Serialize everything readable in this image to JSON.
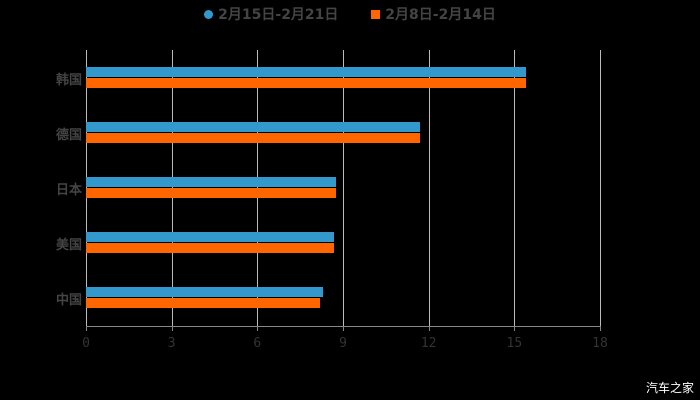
{
  "chart_data": {
    "type": "bar",
    "orientation": "horizontal",
    "title": "",
    "categories": [
      "韩国",
      "德国",
      "日本",
      "美国",
      "中国"
    ],
    "series": [
      {
        "name": "2月15日-2月21日",
        "color": "#3399cc",
        "values": [
          15.4,
          11.7,
          8.75,
          8.7,
          8.3
        ]
      },
      {
        "name": "2月8日-2月14日",
        "color": "#ff6600",
        "values": [
          15.4,
          11.7,
          8.75,
          8.7,
          8.2
        ]
      }
    ],
    "xlabel": "",
    "ylabel": "",
    "xlim": [
      0,
      18
    ],
    "xticks": [
      "0",
      "3",
      "6",
      "9",
      "12",
      "15",
      "18"
    ],
    "grid": true,
    "legend_position": "top"
  },
  "legend": {
    "s1": "2月15日-2月21日",
    "s2": "2月8日-2月14日"
  },
  "watermark": "汽车之家"
}
